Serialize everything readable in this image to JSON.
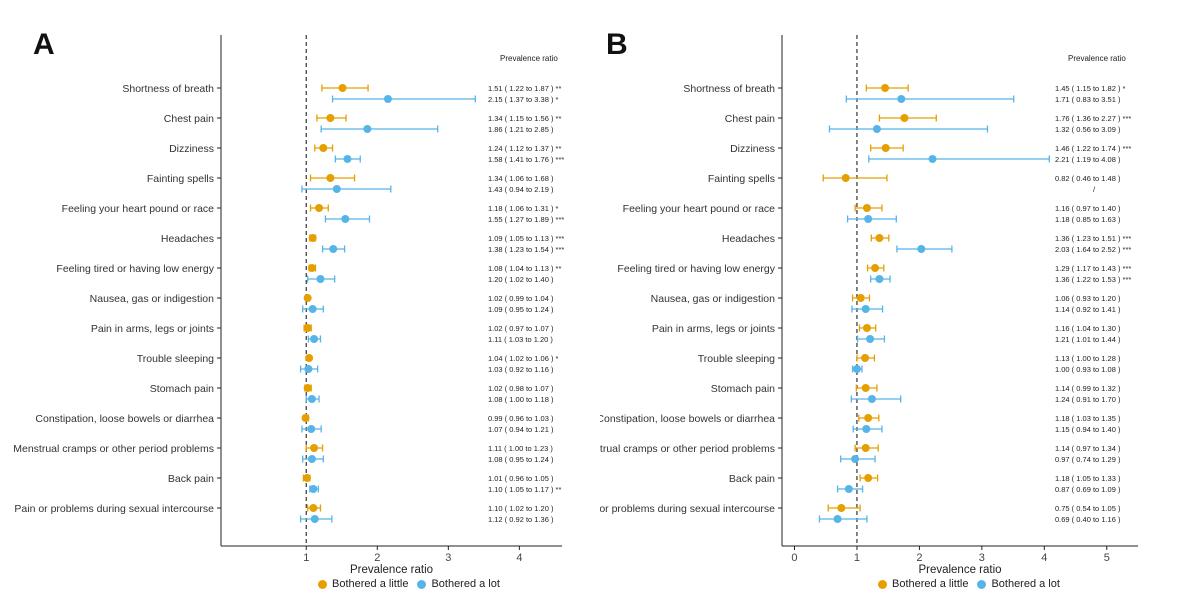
{
  "symptoms": [
    "Shortness of breath",
    "Chest pain",
    "Dizziness",
    "Fainting spells",
    "Feeling your heart pound or race",
    "Headaches",
    "Feeling tired or having low energy",
    "Nausea, gas or indigestion",
    "Pain in arms, legs or joints",
    "Trouble sleeping",
    "Stomach pain",
    "Constipation, loose bowels or diarrhea",
    "Menstrual cramps or other period problems",
    "Back pain",
    "Pain or problems during sexual intercourse"
  ],
  "colors": {
    "little": "#E69F00",
    "lot": "#56B4E9"
  },
  "legend": {
    "little_label": "Bothered a little",
    "lot_label": "Bothered a lot"
  },
  "chart_data": [
    {
      "panel": "A",
      "type": "scatter",
      "xlabel": "Prevalence ratio",
      "ratio_header": "Prevalence ratio",
      "xlim": [
        -0.2,
        4.6
      ],
      "xticks": [
        1,
        2,
        3,
        4
      ],
      "reference_line": 1,
      "series": [
        {
          "name": "Bothered a little",
          "values": [
            {
              "pr": 1.51,
              "lo": 1.22,
              "hi": 1.87,
              "sig": "**"
            },
            {
              "pr": 1.34,
              "lo": 1.15,
              "hi": 1.56,
              "sig": "**"
            },
            {
              "pr": 1.24,
              "lo": 1.12,
              "hi": 1.37,
              "sig": "**"
            },
            {
              "pr": 1.34,
              "lo": 1.06,
              "hi": 1.68,
              "sig": ""
            },
            {
              "pr": 1.18,
              "lo": 1.06,
              "hi": 1.31,
              "sig": "*"
            },
            {
              "pr": 1.09,
              "lo": 1.05,
              "hi": 1.13,
              "sig": "***"
            },
            {
              "pr": 1.08,
              "lo": 1.04,
              "hi": 1.13,
              "sig": "**"
            },
            {
              "pr": 1.02,
              "lo": 0.99,
              "hi": 1.04,
              "sig": ""
            },
            {
              "pr": 1.02,
              "lo": 0.97,
              "hi": 1.07,
              "sig": ""
            },
            {
              "pr": 1.04,
              "lo": 1.02,
              "hi": 1.06,
              "sig": "*"
            },
            {
              "pr": 1.02,
              "lo": 0.98,
              "hi": 1.07,
              "sig": ""
            },
            {
              "pr": 0.99,
              "lo": 0.96,
              "hi": 1.03,
              "sig": ""
            },
            {
              "pr": 1.11,
              "lo": 1.0,
              "hi": 1.23,
              "sig": ""
            },
            {
              "pr": 1.01,
              "lo": 0.96,
              "hi": 1.05,
              "sig": ""
            },
            {
              "pr": 1.1,
              "lo": 1.02,
              "hi": 1.2,
              "sig": ""
            }
          ]
        },
        {
          "name": "Bothered a lot",
          "values": [
            {
              "pr": 2.15,
              "lo": 1.37,
              "hi": 3.38,
              "sig": "*"
            },
            {
              "pr": 1.86,
              "lo": 1.21,
              "hi": 2.85,
              "sig": ""
            },
            {
              "pr": 1.58,
              "lo": 1.41,
              "hi": 1.76,
              "sig": "***"
            },
            {
              "pr": 1.43,
              "lo": 0.94,
              "hi": 2.19,
              "sig": ""
            },
            {
              "pr": 1.55,
              "lo": 1.27,
              "hi": 1.89,
              "sig": "***"
            },
            {
              "pr": 1.38,
              "lo": 1.23,
              "hi": 1.54,
              "sig": "***"
            },
            {
              "pr": 1.2,
              "lo": 1.02,
              "hi": 1.4,
              "sig": ""
            },
            {
              "pr": 1.09,
              "lo": 0.95,
              "hi": 1.24,
              "sig": ""
            },
            {
              "pr": 1.11,
              "lo": 1.03,
              "hi": 1.2,
              "sig": ""
            },
            {
              "pr": 1.03,
              "lo": 0.92,
              "hi": 1.16,
              "sig": ""
            },
            {
              "pr": 1.08,
              "lo": 1.0,
              "hi": 1.18,
              "sig": ""
            },
            {
              "pr": 1.07,
              "lo": 0.94,
              "hi": 1.21,
              "sig": ""
            },
            {
              "pr": 1.08,
              "lo": 0.95,
              "hi": 1.24,
              "sig": ""
            },
            {
              "pr": 1.1,
              "lo": 1.05,
              "hi": 1.17,
              "sig": "**"
            },
            {
              "pr": 1.12,
              "lo": 0.92,
              "hi": 1.36,
              "sig": ""
            }
          ]
        }
      ]
    },
    {
      "panel": "B",
      "type": "scatter",
      "xlabel": "Prevalence ratio",
      "ratio_header": "Prevalence ratio",
      "xlim": [
        -0.2,
        5.5
      ],
      "xticks": [
        0,
        1,
        2,
        3,
        4,
        5
      ],
      "reference_line": 1,
      "series": [
        {
          "name": "Bothered a little",
          "values": [
            {
              "pr": 1.45,
              "lo": 1.15,
              "hi": 1.82,
              "sig": "*"
            },
            {
              "pr": 1.76,
              "lo": 1.36,
              "hi": 2.27,
              "sig": "***"
            },
            {
              "pr": 1.46,
              "lo": 1.22,
              "hi": 1.74,
              "sig": "***"
            },
            {
              "pr": 0.82,
              "lo": 0.46,
              "hi": 1.48,
              "sig": ""
            },
            {
              "pr": 1.16,
              "lo": 0.97,
              "hi": 1.4,
              "sig": ""
            },
            {
              "pr": 1.36,
              "lo": 1.23,
              "hi": 1.51,
              "sig": "***"
            },
            {
              "pr": 1.29,
              "lo": 1.17,
              "hi": 1.43,
              "sig": "***"
            },
            {
              "pr": 1.06,
              "lo": 0.93,
              "hi": 1.2,
              "sig": ""
            },
            {
              "pr": 1.16,
              "lo": 1.04,
              "hi": 1.3,
              "sig": ""
            },
            {
              "pr": 1.13,
              "lo": 1.0,
              "hi": 1.28,
              "sig": ""
            },
            {
              "pr": 1.14,
              "lo": 0.99,
              "hi": 1.32,
              "sig": ""
            },
            {
              "pr": 1.18,
              "lo": 1.03,
              "hi": 1.35,
              "sig": ""
            },
            {
              "pr": 1.14,
              "lo": 0.97,
              "hi": 1.34,
              "sig": ""
            },
            {
              "pr": 1.18,
              "lo": 1.05,
              "hi": 1.33,
              "sig": ""
            },
            {
              "pr": 0.75,
              "lo": 0.54,
              "hi": 1.05,
              "sig": ""
            }
          ]
        },
        {
          "name": "Bothered a lot",
          "values": [
            {
              "pr": 1.71,
              "lo": 0.83,
              "hi": 3.51,
              "sig": ""
            },
            {
              "pr": 1.32,
              "lo": 0.56,
              "hi": 3.09,
              "sig": ""
            },
            {
              "pr": 2.21,
              "lo": 1.19,
              "hi": 4.08,
              "sig": ""
            },
            {
              "pr": null,
              "lo": null,
              "hi": null,
              "sig": "",
              "text": "/"
            },
            {
              "pr": 1.18,
              "lo": 0.85,
              "hi": 1.63,
              "sig": ""
            },
            {
              "pr": 2.03,
              "lo": 1.64,
              "hi": 2.52,
              "sig": "***"
            },
            {
              "pr": 1.36,
              "lo": 1.22,
              "hi": 1.53,
              "sig": "***"
            },
            {
              "pr": 1.14,
              "lo": 0.92,
              "hi": 1.41,
              "sig": ""
            },
            {
              "pr": 1.21,
              "lo": 1.01,
              "hi": 1.44,
              "sig": ""
            },
            {
              "pr": 1.0,
              "lo": 0.93,
              "hi": 1.08,
              "sig": ""
            },
            {
              "pr": 1.24,
              "lo": 0.91,
              "hi": 1.7,
              "sig": ""
            },
            {
              "pr": 1.15,
              "lo": 0.94,
              "hi": 1.4,
              "sig": ""
            },
            {
              "pr": 0.97,
              "lo": 0.74,
              "hi": 1.29,
              "sig": ""
            },
            {
              "pr": 0.87,
              "lo": 0.69,
              "hi": 1.09,
              "sig": ""
            },
            {
              "pr": 0.69,
              "lo": 0.4,
              "hi": 1.16,
              "sig": ""
            }
          ]
        }
      ]
    }
  ]
}
